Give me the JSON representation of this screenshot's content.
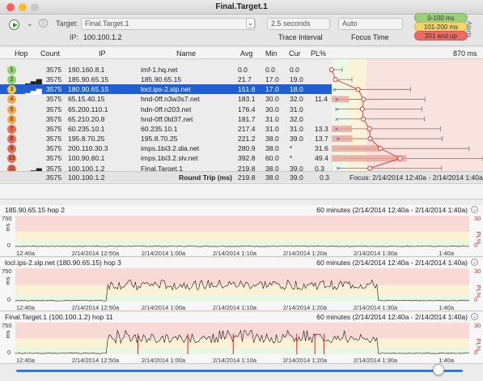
{
  "window": {
    "title": "Final.Target.1"
  },
  "toolbar": {
    "target_label": "Target:",
    "target_value": "Final.Target.1",
    "ip_label": "IP:",
    "ip_value": "100.100.1.2",
    "trace_interval_value": "2.5 seconds",
    "trace_interval_label": "Trace Interval",
    "focus_value": "Auto",
    "focus_label": "Focus Time",
    "alerts_label": "Alerts"
  },
  "legend": [
    {
      "label": "0-100 ms",
      "color": "#9bd07a"
    },
    {
      "label": "101-200 ms",
      "color": "#f2d46b"
    },
    {
      "label": "201 and up",
      "color": "#ea6b63"
    }
  ],
  "columns": {
    "hop": "Hop",
    "count": "Count",
    "ip": "IP",
    "name": "Name",
    "avg": "Avg",
    "min": "Min",
    "cur": "Cur",
    "pl": "PL%",
    "scale": "870 ms"
  },
  "hops": [
    {
      "hop": "1",
      "count": "3575",
      "ip": "190.160.8.1",
      "name": "imf-1.hq.net",
      "avg": "0.0",
      "min": "0.0",
      "cur": "0.0",
      "pl": "",
      "color": "#8fd06f",
      "selected": false,
      "bars": false
    },
    {
      "hop": "2",
      "count": "3575",
      "ip": "185.90.65.15",
      "name": "185.90.65.15",
      "avg": "21.7",
      "min": "17.0",
      "cur": "19.0",
      "pl": "",
      "color": "#8fd06f",
      "selected": false,
      "bars": true
    },
    {
      "hop": "3",
      "count": "3575",
      "ip": "180.90.65.15",
      "name": "locl.ips-2.slp.net",
      "avg": "151.6",
      "min": "17.0",
      "cur": "18.0",
      "pl": "",
      "color": "#f1c24a",
      "selected": true,
      "bars": true
    },
    {
      "hop": "4",
      "count": "3575",
      "ip": "65.15.40.15",
      "name": "hnd-0ff.n3w3s7.net",
      "avg": "183.1",
      "min": "30.0",
      "cur": "32.0",
      "pl": "11.4",
      "color": "#f1a54a",
      "selected": false,
      "bars": false
    },
    {
      "hop": "5",
      "count": "3575",
      "ip": "65.200.110.1",
      "name": "hdn-0ff.n203.net",
      "avg": "176.4",
      "min": "30.0",
      "cur": "31.0",
      "pl": "",
      "color": "#f1a54a",
      "selected": false,
      "bars": false
    },
    {
      "hop": "6",
      "count": "3575",
      "ip": "65.210.20.8",
      "name": "hnd-0ff.0ld37.net",
      "avg": "181.7",
      "min": "31.0",
      "cur": "32.0",
      "pl": "",
      "color": "#f1a54a",
      "selected": false,
      "bars": false
    },
    {
      "hop": "7",
      "count": "3575",
      "ip": "60.235.10.1",
      "name": "60.235.10.1",
      "avg": "217.4",
      "min": "31.0",
      "cur": "31.0",
      "pl": "13.3",
      "color": "#ea6b55",
      "selected": false,
      "bars": false
    },
    {
      "hop": "8",
      "count": "3575",
      "ip": "195.8.70.25",
      "name": "195.8.70.25",
      "avg": "221.2",
      "min": "38.0",
      "cur": "39.0",
      "pl": "13.7",
      "color": "#ea6b55",
      "selected": false,
      "bars": false
    },
    {
      "hop": "9",
      "count": "3575",
      "ip": "200.110.30.3",
      "name": "imps.1bi3.2.dia.net",
      "avg": "280.9",
      "min": "38.0",
      "cur": "*",
      "pl": "31.6",
      "color": "#ea6b55",
      "selected": false,
      "bars": false
    },
    {
      "hop": "10",
      "count": "3575",
      "ip": "100.90.80.1",
      "name": "imps.1bi3.2.slv.net",
      "avg": "392.8",
      "min": "60.0",
      "cur": "*",
      "pl": "49.4",
      "color": "#ea6b55",
      "selected": false,
      "bars": false
    },
    {
      "hop": "11",
      "count": "3575",
      "ip": "100.100.1.2",
      "name": "Final.Target.1",
      "avg": "219.8",
      "min": "38.0",
      "cur": "39.0",
      "pl": "0.3",
      "color": "#ea6b55",
      "selected": false,
      "bars": true
    }
  ],
  "summary": {
    "count": "3575",
    "ip": "100.100.1.2",
    "label": "Round Trip (ms)",
    "avg": "219.8",
    "min": "38.0",
    "cur": "39.0",
    "pl": "0.3",
    "focus": "Focus: 2/14/2014 12:40a - 2/14/2014 1:40a"
  },
  "graphs": [
    {
      "title": "185.90.65.15 hop 2",
      "range": "60 minutes (2/14/2014 12:40a - 2/14/2014 1:40a)"
    },
    {
      "title": "locl.ips-2.slp.net (180.90.65.15) hop 3",
      "range": "60 minutes (2/14/2014 12:40a - 2/14/2014 1:40a)"
    },
    {
      "title": "Final.Target.1 (100.100.1.2) hop 11",
      "range": "60 minutes (2/14/2014 12:40a - 2/14/2014 1:40a)"
    }
  ],
  "graph_axes": {
    "y_label": "ms",
    "pl_label": "PL%",
    "y_ticks": [
      "750",
      "0"
    ],
    "pl_ticks": [
      "30",
      "0"
    ],
    "x_ticks": [
      "12:40a",
      "2/14/2014 12:50a",
      "2/14/2014 1:00a",
      "2/14/2014 1:10a",
      "2/14/2014 1:20a",
      "2/14/2014 1:30a",
      "1:40a"
    ]
  }
}
